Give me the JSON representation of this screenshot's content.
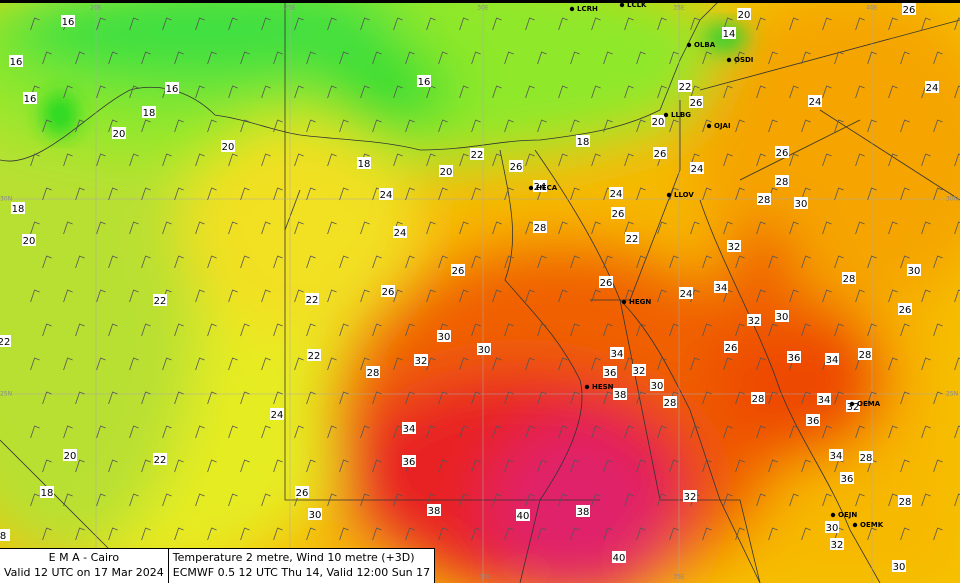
{
  "temperature_labels": [
    16,
    16,
    16,
    16,
    16,
    18,
    20,
    20,
    18,
    20,
    22,
    18,
    26,
    24,
    20,
    22,
    26,
    26,
    24,
    24,
    26,
    22,
    28,
    24,
    24,
    26,
    26,
    22,
    22,
    22,
    22,
    28,
    30,
    30,
    32,
    34,
    36,
    32,
    30,
    38,
    28,
    26,
    24,
    34,
    32,
    30,
    26,
    36,
    34,
    28,
    26,
    28,
    30,
    32,
    28,
    30,
    28,
    26,
    24,
    24,
    20,
    14,
    26,
    28,
    34,
    36,
    32,
    34,
    28,
    36,
    28,
    32,
    34,
    36,
    20,
    22,
    24,
    26,
    30,
    38,
    40,
    38,
    40,
    30,
    32,
    30,
    18,
    20,
    18,
    8
  ],
  "stations": [
    "LCRH",
    "LCLK",
    "OLBA",
    "OSDI",
    "LLBG",
    "OJAI",
    "LLOV",
    "HECA",
    "HEGN",
    "HESN",
    "OEMA",
    "OEJN",
    "OEMK"
  ],
  "grid_labels": [
    "20E",
    "25E",
    "30E",
    "35E",
    "40E",
    "30N",
    "25N",
    "30N",
    "25N",
    "30E",
    "35E"
  ],
  "footer": {
    "left": [
      "E M A  -  Cairo",
      "Valid 12 UTC on 17 Mar 2024"
    ],
    "right": [
      "Temperature  2 metre, Wind  10 metre (+3D)",
      "ECMWF 0.5 12 UTC Thu 14, Valid 12:00 Sun 17"
    ]
  }
}
